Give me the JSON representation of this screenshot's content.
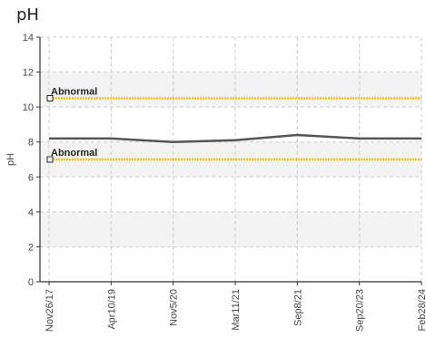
{
  "chart_data": {
    "type": "line",
    "title": "pH",
    "ylabel": "pH",
    "xlabel": "",
    "ylim": [
      0,
      14
    ],
    "y_ticks": [
      0,
      2,
      4,
      6,
      8,
      10,
      12,
      14
    ],
    "grid": true,
    "x": [
      "Nov26/17",
      "Apr10/19",
      "Nov5/20",
      "Mar11/21",
      "Sep8/21",
      "Sep20/23",
      "Feb28/24"
    ],
    "series": [
      {
        "values": [
          8.2,
          8.2,
          8.0,
          8.1,
          8.4,
          8.2,
          8.2
        ]
      }
    ],
    "reference_lines": [
      {
        "label": "Abnormal",
        "value": 10.5
      },
      {
        "label": "Abnormal",
        "value": 7.0
      }
    ],
    "colors": {
      "line": "#555555",
      "reference": "#f5c400",
      "band": "#f3f3f3",
      "grid": "#cccccc"
    }
  }
}
